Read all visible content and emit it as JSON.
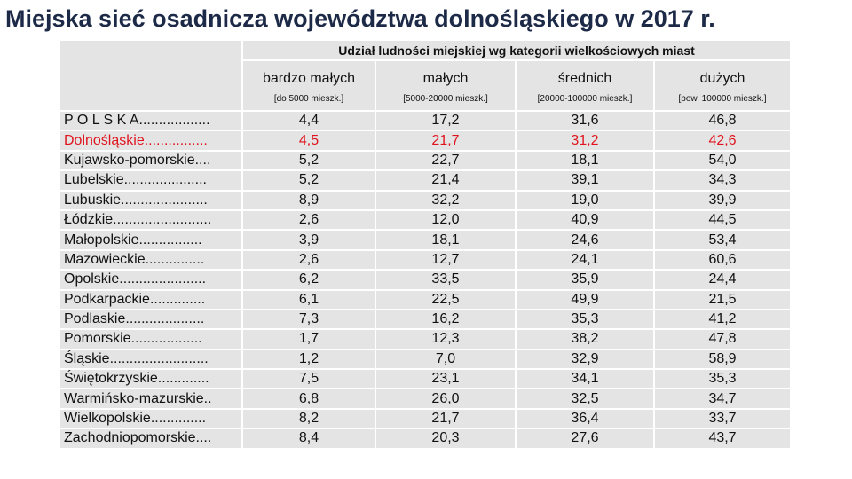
{
  "title": "Miejska sieć osadnicza województwa dolnośląskiego w 2017 r.",
  "table": {
    "group_header": "Udział ludności miejskiej wg kategorii wielkościowych miast",
    "columns": [
      {
        "name": "bardzo małych",
        "range": "[do 5000 mieszk.]"
      },
      {
        "name": "małych",
        "range": "[5000-20000 mieszk.]"
      },
      {
        "name": "średnich",
        "range": "[20000-100000 mieszk.]"
      },
      {
        "name": "dużych",
        "range": "[pow. 100000 mieszk.]"
      }
    ],
    "rows": [
      [
        "P O L S K A..................",
        "4,4",
        "17,2",
        "31,6",
        "46,8"
      ],
      [
        "Dolnośląskie................",
        "4,5",
        "21,7",
        "31,2",
        "42,6"
      ],
      [
        "Kujawsko-pomorskie....",
        "5,2",
        "22,7",
        "18,1",
        "54,0"
      ],
      [
        "Lubelskie.....................",
        "5,2",
        "21,4",
        "39,1",
        "34,3"
      ],
      [
        "Lubuskie......................",
        "8,9",
        "32,2",
        "19,0",
        "39,9"
      ],
      [
        "Łódzkie.........................",
        "2,6",
        "12,0",
        "40,9",
        "44,5"
      ],
      [
        "Małopolskie................",
        "3,9",
        "18,1",
        "24,6",
        "53,4"
      ],
      [
        "Mazowieckie...............",
        "2,6",
        "12,7",
        "24,1",
        "60,6"
      ],
      [
        "Opolskie......................",
        "6,2",
        "33,5",
        "35,9",
        "24,4"
      ],
      [
        "Podkarpackie..............",
        "6,1",
        "22,5",
        "49,9",
        "21,5"
      ],
      [
        "Podlaskie....................",
        "7,3",
        "16,2",
        "35,3",
        "41,2"
      ],
      [
        "Pomorskie..................",
        "1,7",
        "12,3",
        "38,2",
        "47,8"
      ],
      [
        "Śląskie.........................",
        "1,2",
        "7,0",
        "32,9",
        "58,9"
      ],
      [
        "Świętokrzyskie.............",
        "7,5",
        "23,1",
        "34,1",
        "35,3"
      ],
      [
        "Warmińsko-mazurskie..",
        "6,8",
        "26,0",
        "32,5",
        "34,7"
      ],
      [
        "Wielkopolskie..............",
        "8,2",
        "21,7",
        "36,4",
        "33,7"
      ],
      [
        "Zachodniopomorskie....",
        "8,4",
        "20,3",
        "27,6",
        "43,7"
      ]
    ]
  }
}
